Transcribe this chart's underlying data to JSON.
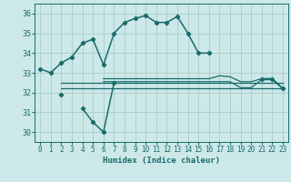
{
  "xlabel": "Humidex (Indice chaleur)",
  "xlim": [
    -0.5,
    23.5
  ],
  "ylim": [
    29.5,
    36.5
  ],
  "yticks": [
    30,
    31,
    32,
    33,
    34,
    35,
    36
  ],
  "xticks": [
    0,
    1,
    2,
    3,
    4,
    5,
    6,
    7,
    8,
    9,
    10,
    11,
    12,
    13,
    14,
    15,
    16,
    17,
    18,
    19,
    20,
    21,
    22,
    23
  ],
  "bg_color": "#cce8e8",
  "grid_color": "#aacccc",
  "line_color": "#1a6b6b",
  "lines": [
    {
      "x": [
        0,
        1,
        2,
        3,
        4,
        5,
        6,
        7,
        8,
        9,
        10,
        11,
        12,
        13,
        14,
        15,
        16,
        17,
        18,
        21,
        22,
        23
      ],
      "y": [
        33.2,
        33.0,
        33.5,
        33.8,
        34.5,
        34.7,
        33.4,
        35.0,
        35.55,
        35.75,
        35.9,
        35.55,
        35.55,
        35.85,
        35.0,
        34.0,
        34.0,
        null,
        null,
        32.7,
        32.7,
        32.2
      ],
      "marker": "D",
      "markersize": 2.2,
      "linewidth": 1.1
    },
    {
      "x": [
        2,
        3,
        4,
        5,
        6,
        7
      ],
      "y": [
        31.9,
        null,
        31.2,
        30.5,
        30.0,
        32.5
      ],
      "marker": "D",
      "markersize": 2.2,
      "linewidth": 1.1
    },
    {
      "x": [
        2,
        23
      ],
      "y": [
        32.5,
        32.5
      ],
      "marker": null,
      "linewidth": 0.9
    },
    {
      "x": [
        2,
        23
      ],
      "y": [
        32.2,
        32.2
      ],
      "marker": null,
      "linewidth": 0.9
    },
    {
      "x": [
        6,
        17,
        18,
        19,
        20,
        21,
        22,
        23
      ],
      "y": [
        32.55,
        32.55,
        32.55,
        32.25,
        32.25,
        32.65,
        32.65,
        32.2
      ],
      "marker": null,
      "linewidth": 0.9
    },
    {
      "x": [
        6,
        16,
        17,
        18,
        19,
        20,
        21,
        22,
        23
      ],
      "y": [
        32.7,
        32.7,
        32.85,
        32.8,
        32.55,
        32.55,
        32.7,
        32.7,
        32.2
      ],
      "marker": null,
      "linewidth": 0.9
    }
  ]
}
